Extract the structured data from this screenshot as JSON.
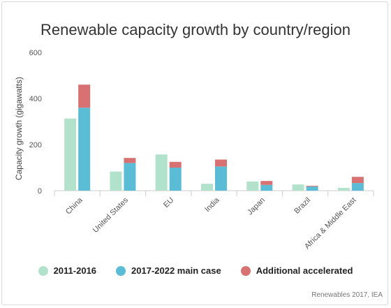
{
  "chart_data": {
    "type": "bar",
    "title": "Renewable capacity growth by country/region",
    "ylabel": "Capacity growth (gigawatts)",
    "xlabel": "",
    "ylim": [
      0,
      600
    ],
    "yticks": [
      0,
      200,
      400,
      600
    ],
    "categories": [
      "China",
      "United States",
      "EU",
      "India",
      "Japan",
      "Brazil",
      "Africa & Middle East"
    ],
    "series": [
      {
        "name": "2011-2016",
        "color": "#b3e2cc",
        "values": [
          313,
          83,
          157,
          30,
          40,
          27,
          12
        ]
      },
      {
        "name": "2017-2022 main case",
        "color": "#5bbcd6",
        "values": [
          360,
          120,
          100,
          105,
          25,
          18,
          33
        ]
      },
      {
        "name": "Additional accelerated",
        "color": "#d87272",
        "values": [
          100,
          22,
          25,
          30,
          17,
          3,
          27
        ]
      }
    ],
    "stacked_series": [
      [
        "2017-2022 main case",
        "Additional accelerated"
      ]
    ],
    "grid": false,
    "legend_position": "bottom"
  },
  "source": "Renewables 2017, IEA"
}
